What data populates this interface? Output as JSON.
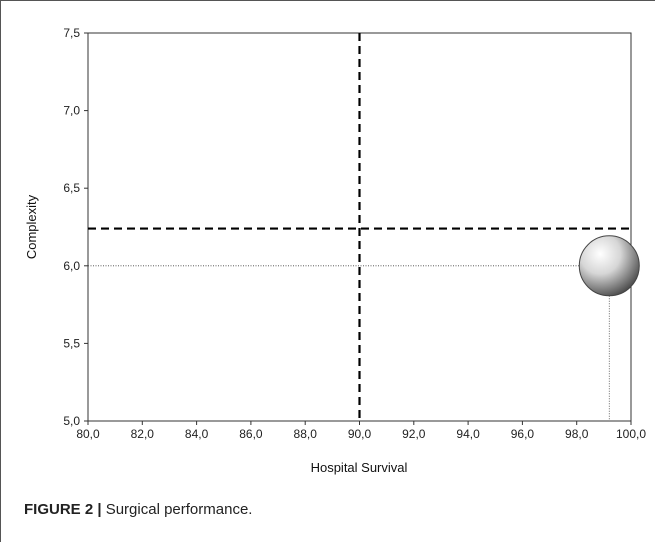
{
  "chart_data": {
    "type": "scatter",
    "title": "",
    "xlabel": "Hospital Survival",
    "ylabel": "Complexity",
    "xlim": [
      80,
      100
    ],
    "ylim": [
      5,
      7.5
    ],
    "xticks": [
      "80,0",
      "82,0",
      "84,0",
      "86,0",
      "88,0",
      "90,0",
      "92,0",
      "94,0",
      "96,0",
      "98,0",
      "100,0"
    ],
    "yticks": [
      "5,0",
      "5,5",
      "6,0",
      "6,5",
      "7,0",
      "7,5"
    ],
    "grid": false,
    "reference_lines": {
      "x_dashed": 90.0,
      "y_dashed": 6.24
    },
    "points": [
      {
        "x": 99.2,
        "y": 6.0
      }
    ]
  },
  "caption": {
    "label": "FIGURE 2 |",
    "text": " Surgical performance."
  },
  "colors": {
    "axis": "#555555",
    "reference": "#000000",
    "bubble_light": "#ffffff",
    "bubble_dark": "#555555"
  }
}
